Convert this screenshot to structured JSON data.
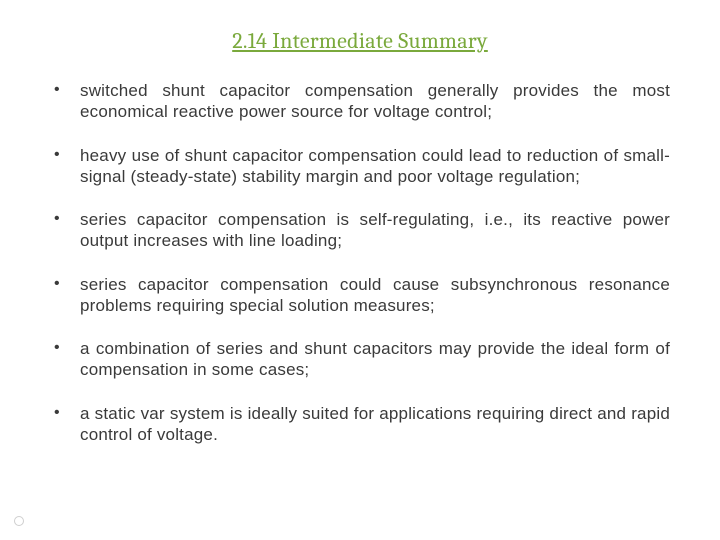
{
  "title": "2.14 Intermediate Summary",
  "title_color": "#7aa93c",
  "text_color": "#3a3a3a",
  "background_color": "#ffffff",
  "title_font": "Cambria, Georgia, serif",
  "body_font": "Century Gothic, Futura, Avant Garde, sans-serif",
  "title_fontsize": 22,
  "body_fontsize": 17,
  "bullets": [
    "switched shunt capacitor compensation generally provides the most economical reactive power source for voltage control;",
    "heavy use of shunt capacitor compensation could lead to reduction of small-signal (steady-state) stability margin and poor voltage regulation;",
    "series capacitor compensation is self-regulating, i.e., its reactive power output increases with line loading;",
    "series capacitor compensation could cause subsynchronous resonance problems requiring special solution measures;",
    "a combination of series and shunt capacitors may provide the ideal form of compensation in some cases;",
    "a static var system is ideally suited for applications requiring direct and rapid control of voltage."
  ],
  "corner_dot_color": "#cfcfcf"
}
